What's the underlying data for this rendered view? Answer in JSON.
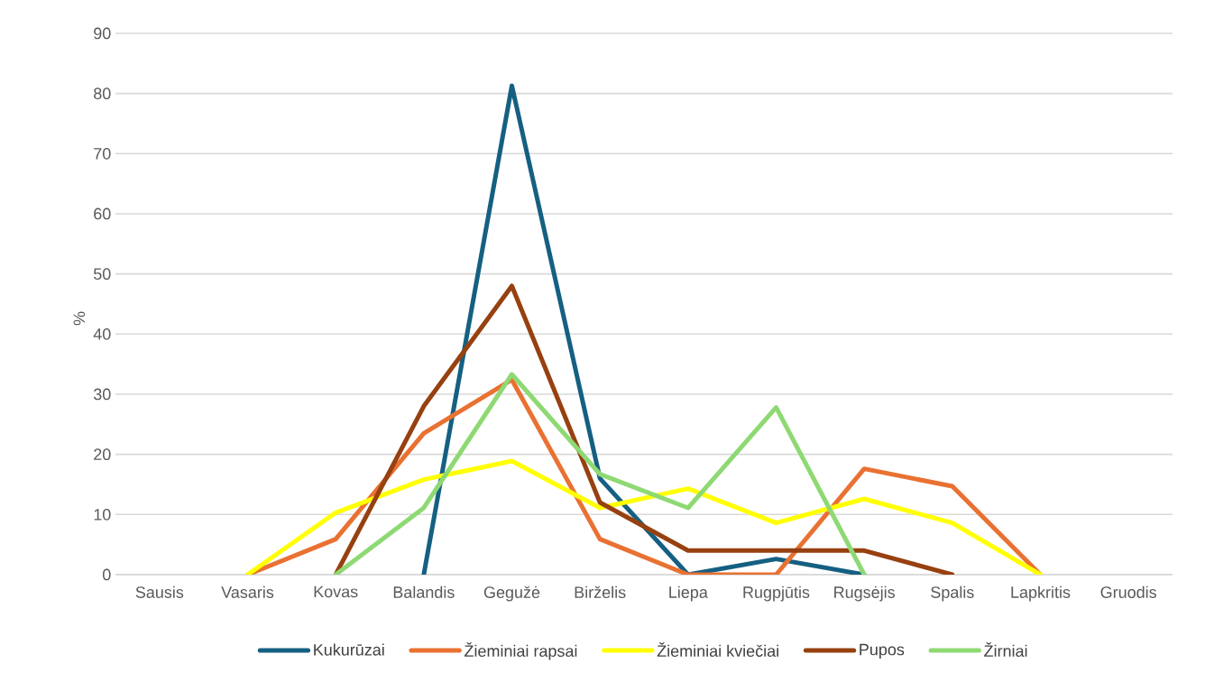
{
  "chart_data": {
    "type": "line",
    "ylabel": "%",
    "categories": [
      "Sausis",
      "Vasaris",
      "Kovas",
      "Balandis",
      "Gegužė",
      "Birželis",
      "Liepa",
      "Rugpjūtis",
      "Rugsėjis",
      "Spalis",
      "Lapkritis",
      "Gruodis"
    ],
    "series": [
      {
        "name": "Kukurūzai",
        "color": "#156082",
        "values": [
          null,
          null,
          null,
          0,
          81.3,
          16,
          0,
          2.6,
          0,
          null,
          null,
          null
        ]
      },
      {
        "name": "Žieminiai rapsai",
        "color": "#e97132",
        "values": [
          null,
          0,
          5.9,
          23.5,
          32.4,
          5.9,
          0,
          0,
          17.6,
          14.7,
          0,
          null
        ]
      },
      {
        "name": "Žieminiai kviečiai",
        "color": "#ffff00",
        "values": [
          null,
          0,
          10.3,
          15.8,
          18.9,
          11.1,
          14.3,
          8.6,
          12.6,
          8.6,
          0,
          null
        ]
      },
      {
        "name": "Pupos",
        "color": "#974010",
        "values": [
          null,
          null,
          0,
          28,
          48,
          12,
          4,
          4,
          4,
          0,
          null,
          null
        ]
      },
      {
        "name": "Žirniai",
        "color": "#8ed973",
        "values": [
          null,
          null,
          0,
          11.1,
          33.3,
          16.7,
          11.1,
          27.8,
          0,
          null,
          null,
          null
        ]
      }
    ],
    "ylim": [
      0,
      90
    ],
    "yticks": [
      0,
      10,
      20,
      30,
      40,
      50,
      60,
      70,
      80,
      90
    ],
    "grid": "y",
    "legend": "bottom",
    "marker": "none",
    "line_style": "solid"
  }
}
